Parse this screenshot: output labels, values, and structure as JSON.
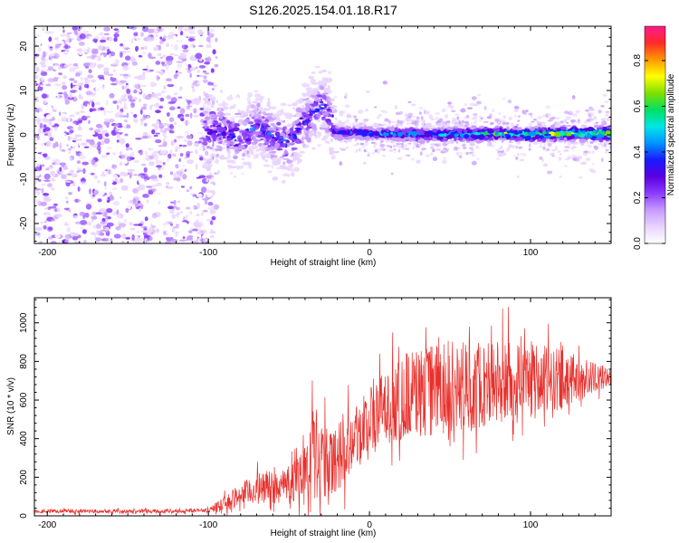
{
  "figure": {
    "title": "S126.2025.154.01.18.R17"
  },
  "colors": {
    "snr_line": "#e8302c",
    "colormap": [
      "#ffffff",
      "#e9d4ff",
      "#c79bff",
      "#8a3dff",
      "#5a00e0",
      "#1a1aff",
      "#0095ff",
      "#00e6e6",
      "#00e060",
      "#7ee000",
      "#ffff00",
      "#ff9900",
      "#ff2a2a",
      "#ff1a8c"
    ]
  },
  "chart_data": [
    {
      "type": "heatmap",
      "title": "",
      "xlabel": "Height of straight line (km)",
      "ylabel": "Frequency (Hz)",
      "xlim": [
        -208,
        150
      ],
      "ylim": [
        -24.5,
        24.5
      ],
      "x_ticks": [
        -200,
        -100,
        0,
        100
      ],
      "y_ticks": [
        -20,
        -10,
        0,
        10,
        20
      ],
      "x_tick_labels": [
        "-200",
        "-100",
        "0",
        "100"
      ],
      "y_tick_labels": [
        "-20",
        "-10",
        "0",
        "10",
        "20"
      ],
      "colorbar": {
        "label": "Normalized spectral amplitude",
        "range": [
          0,
          0.95
        ],
        "ticks": [
          0.0,
          0.2,
          0.4,
          0.6,
          0.8
        ],
        "tick_labels": [
          "0.0",
          "0.2",
          "0.4",
          "0.6",
          "0.8"
        ]
      },
      "regions": [
        {
          "x_range": [
            -208,
            -95
          ],
          "description_of_values": "broadband noise",
          "freq_range": [
            -24.5,
            24.5
          ],
          "amplitude": [
            0.0,
            0.25
          ]
        },
        {
          "x_range": [
            -103,
            -22
          ],
          "freq_center": 0,
          "freq_spread": 10,
          "amplitude": [
            0.05,
            0.45
          ]
        },
        {
          "x_range": [
            -22,
            150
          ],
          "freq_center": 0.5,
          "freq_spread": 1.5,
          "amplitude": [
            0.2,
            0.9
          ]
        }
      ],
      "ridge": {
        "x": [
          -100,
          -90,
          -80,
          -70,
          -60,
          -50,
          -40,
          -35,
          -30,
          -25,
          -22,
          -20,
          0,
          20,
          40,
          60,
          80,
          100,
          120,
          150
        ],
        "freq": [
          0,
          1,
          -1,
          2,
          0,
          -2,
          3,
          5,
          7,
          5,
          1,
          0.5,
          0.4,
          0.2,
          0.1,
          0.1,
          0.2,
          0.1,
          0.3,
          0.2
        ]
      }
    },
    {
      "type": "line",
      "title": "",
      "xlabel": "Height of straight line (km)",
      "ylabel": "SNR (10 * v/v)",
      "xlim": [
        -208,
        150
      ],
      "ylim": [
        0,
        1130
      ],
      "x_ticks": [
        -200,
        -100,
        0,
        100
      ],
      "y_ticks": [
        0,
        200,
        400,
        600,
        800,
        1000
      ],
      "x_tick_labels": [
        "-200",
        "-100",
        "0",
        "100"
      ],
      "y_tick_labels": [
        "0",
        "200",
        "400",
        "600",
        "800",
        "1000"
      ],
      "series": [
        {
          "x": [
            -208,
            -180,
            -150,
            -120,
            -100,
            -90,
            -80,
            -70,
            -60,
            -50,
            -40,
            -35,
            -30,
            -25,
            -20,
            -10,
            0,
            10,
            20,
            30,
            40,
            50,
            60,
            70,
            80,
            90,
            100,
            110,
            120,
            130,
            140,
            150
          ],
          "values": [
            25,
            25,
            25,
            25,
            30,
            60,
            110,
            140,
            150,
            160,
            250,
            330,
            300,
            250,
            330,
            420,
            480,
            560,
            620,
            640,
            650,
            660,
            670,
            680,
            690,
            690,
            690,
            700,
            710,
            710,
            715,
            720
          ],
          "spread": [
            10,
            10,
            10,
            10,
            10,
            40,
            60,
            80,
            90,
            100,
            150,
            250,
            220,
            180,
            200,
            180,
            200,
            200,
            230,
            240,
            240,
            240,
            240,
            230,
            230,
            220,
            200,
            180,
            150,
            120,
            80,
            40
          ]
        }
      ]
    }
  ]
}
